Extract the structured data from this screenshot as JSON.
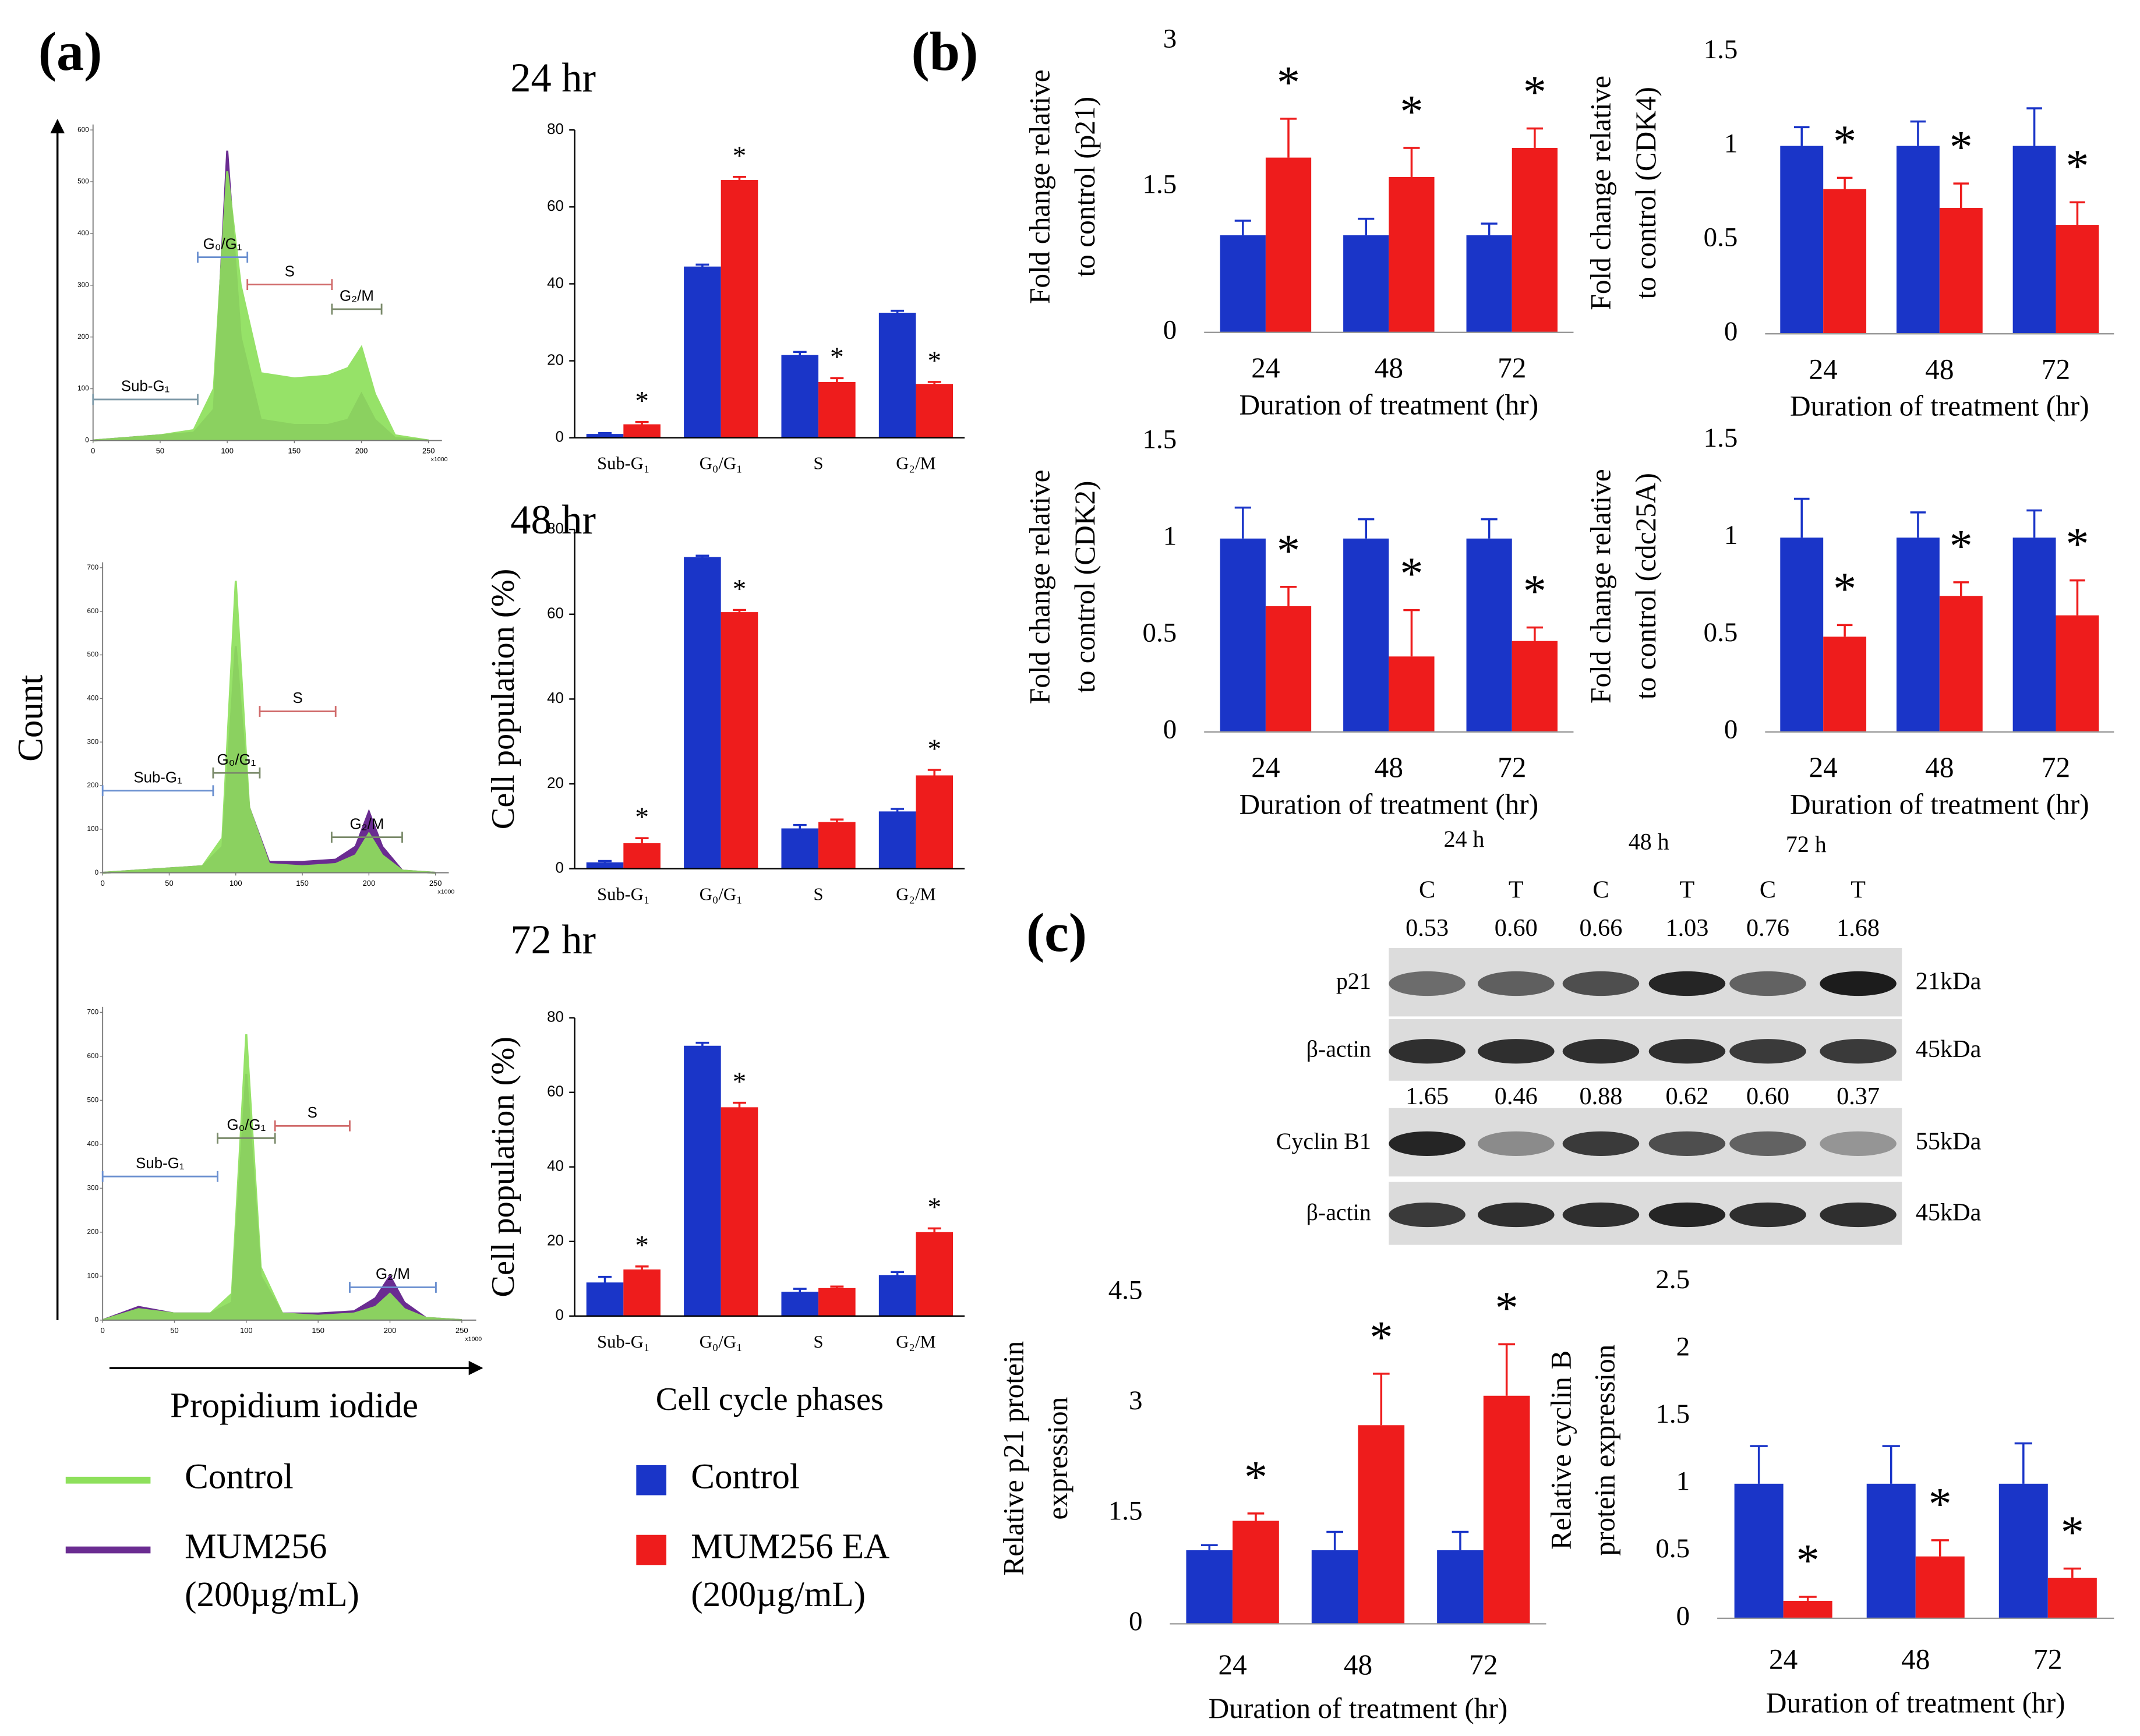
{
  "panels": [
    "(a)",
    "(b)",
    "(c)"
  ],
  "panel_a": {
    "y_label": "Count",
    "x_label": "Propidium iodide",
    "histogram_legend": [
      {
        "name": "Control",
        "color": "#8ee05c"
      },
      {
        "name": "MUM256",
        "note": "(200µg/mL)",
        "color": "#6a2c91"
      }
    ],
    "bar_legend": [
      {
        "name": "Control",
        "color": "#1a35c8"
      },
      {
        "name": "MUM256 EA",
        "note": "(200µg/mL)",
        "color": "#ee1c1c"
      }
    ]
  },
  "blot": {
    "timepoints": [
      "24 h",
      "48 h",
      "72 h"
    ],
    "lanes": [
      "C",
      "T",
      "C",
      "T",
      "C",
      "T"
    ],
    "rows": [
      {
        "label": "p21",
        "size": "21kDa",
        "values": [
          "0.53",
          "0.60",
          "0.66",
          "1.03",
          "0.76",
          "1.68"
        ]
      },
      {
        "label": "β-actin",
        "size": "45kDa"
      },
      {
        "label": "Cyclin B1",
        "size": "55kDa",
        "values": [
          "1.65",
          "0.46",
          "0.88",
          "0.62",
          "0.60",
          "0.37"
        ]
      },
      {
        "label": "β-actin",
        "size": "45kDa"
      }
    ]
  },
  "chart_data": [
    {
      "type": "area",
      "xlim": [
        0,
        260
      ],
      "xticks": [
        0,
        50,
        100,
        150,
        200,
        250
      ],
      "ylim": [
        0,
        600
      ],
      "yticks": [
        0,
        100,
        200,
        300,
        400,
        500,
        600
      ],
      "x_unit_label": "x1000",
      "x": [
        0,
        25,
        50,
        75,
        90,
        100,
        110,
        125,
        150,
        175,
        190,
        200,
        210,
        225,
        250
      ],
      "series": [
        {
          "color": "#6a2c91",
          "values": [
            0,
            5,
            10,
            15,
            60,
            560,
            200,
            40,
            30,
            30,
            40,
            90,
            40,
            5,
            0
          ]
        },
        {
          "color": "#8ee05c",
          "values": [
            0,
            5,
            10,
            20,
            100,
            520,
            300,
            130,
            120,
            125,
            140,
            180,
            90,
            10,
            0
          ]
        }
      ],
      "gates": [
        {
          "label": "Sub-G₁",
          "range": [
            0,
            78
          ],
          "color": "#7f9aa8"
        },
        {
          "label": "G₀/G₁",
          "range": [
            78,
            115
          ],
          "color": "#6a8fcf"
        },
        {
          "label": "S",
          "range": [
            115,
            178
          ],
          "color": "#d06a6a"
        },
        {
          "label": "G₂/M",
          "range": [
            178,
            215
          ],
          "color": "#7a8a6a"
        }
      ]
    },
    {
      "type": "area",
      "xlim": [
        0,
        260
      ],
      "xticks": [
        0,
        50,
        100,
        150,
        200,
        250
      ],
      "ylim": [
        0,
        700
      ],
      "yticks": [
        0,
        100,
        200,
        300,
        400,
        500,
        600,
        700
      ],
      "x_unit_label": "x1000",
      "x": [
        0,
        25,
        50,
        75,
        90,
        100,
        110,
        125,
        150,
        175,
        190,
        200,
        210,
        225,
        250
      ],
      "series": [
        {
          "color": "#6a2c91",
          "values": [
            0,
            5,
            10,
            15,
            60,
            520,
            150,
            25,
            25,
            30,
            60,
            140,
            60,
            5,
            0
          ]
        },
        {
          "color": "#8ee05c",
          "values": [
            0,
            5,
            10,
            15,
            80,
            670,
            150,
            20,
            15,
            20,
            40,
            90,
            40,
            5,
            0
          ]
        }
      ],
      "gates": [
        {
          "label": "Sub-G₁",
          "range": [
            0,
            83
          ],
          "color": "#6a8fcf"
        },
        {
          "label": "G₀/G₁",
          "range": [
            83,
            118
          ],
          "color": "#7a8a6a"
        },
        {
          "label": "S",
          "range": [
            118,
            175
          ],
          "color": "#d06a6a"
        },
        {
          "label": "G₂/M",
          "range": [
            172,
            225
          ],
          "color": "#7a8a6a"
        }
      ]
    },
    {
      "type": "area",
      "xlim": [
        0,
        260
      ],
      "xticks": [
        0,
        50,
        100,
        150,
        200,
        250
      ],
      "ylim": [
        0,
        700
      ],
      "yticks": [
        0,
        100,
        200,
        300,
        400,
        500,
        600,
        700
      ],
      "x_unit_label": "x1000",
      "x": [
        0,
        25,
        50,
        75,
        90,
        100,
        110,
        125,
        150,
        175,
        190,
        200,
        210,
        225,
        250
      ],
      "series": [
        {
          "color": "#6a2c91",
          "values": [
            0,
            30,
            15,
            15,
            40,
            560,
            100,
            15,
            15,
            20,
            50,
            100,
            40,
            5,
            0
          ]
        },
        {
          "color": "#8ee05c",
          "values": [
            0,
            25,
            15,
            15,
            60,
            650,
            120,
            15,
            10,
            15,
            30,
            60,
            25,
            5,
            0
          ]
        }
      ],
      "gates": [
        {
          "label": "Sub-G₁",
          "range": [
            0,
            80
          ],
          "color": "#6a8fcf"
        },
        {
          "label": "G₀/G₁",
          "range": [
            80,
            120
          ],
          "color": "#7a8a6a"
        },
        {
          "label": "S",
          "range": [
            120,
            172
          ],
          "color": "#d06a6a"
        },
        {
          "label": "G₂/M",
          "range": [
            172,
            232
          ],
          "color": "#6a8fcf"
        }
      ]
    },
    {
      "type": "bar",
      "title": "24 hr",
      "categories": [
        "Sub-G₁",
        "G₀/G₁",
        "S",
        "G₂/M"
      ],
      "ylim": [
        0,
        80
      ],
      "yticks": [
        0,
        20,
        40,
        60,
        80
      ],
      "series": [
        {
          "color": "#1a35c8",
          "values": [
            1,
            44.5,
            21.5,
            32.5
          ],
          "errors": [
            0.2,
            0.5,
            0.8,
            0.5
          ],
          "significance": [
            null,
            null,
            null,
            null
          ]
        },
        {
          "color": "#ee1c1c",
          "values": [
            3.5,
            67,
            14.5,
            14
          ],
          "errors": [
            0.6,
            0.8,
            1,
            0.5
          ],
          "significance": [
            "*",
            "*",
            "*",
            "*"
          ]
        }
      ]
    },
    {
      "type": "bar",
      "title": "48 hr",
      "ylabel": [
        "Cell population (%)"
      ],
      "categories": [
        "Sub-G₁",
        "G₀/G₁",
        "S",
        "G₂/M"
      ],
      "ylim": [
        0,
        80
      ],
      "yticks": [
        0,
        20,
        40,
        60,
        80
      ],
      "series": [
        {
          "color": "#1a35c8",
          "values": [
            1.5,
            73.5,
            9.5,
            13.5
          ],
          "errors": [
            0.3,
            0.3,
            0.8,
            0.6
          ],
          "significance": [
            null,
            null,
            null,
            null
          ]
        },
        {
          "color": "#ee1c1c",
          "values": [
            6,
            60.5,
            11,
            22
          ],
          "errors": [
            1.2,
            0.5,
            0.6,
            1.3
          ],
          "significance": [
            "*",
            "*",
            null,
            "*"
          ]
        }
      ]
    },
    {
      "type": "bar",
      "title": "72 hr",
      "ylabel": [
        "Cell population (%)"
      ],
      "xlabel": "Cell cycle phases",
      "categories": [
        "Sub-G₁",
        "G₀/G₁",
        "S",
        "G₂/M"
      ],
      "ylim": [
        0,
        80
      ],
      "yticks": [
        0,
        20,
        40,
        60,
        80
      ],
      "series": [
        {
          "color": "#1a35c8",
          "values": [
            9,
            72.5,
            6.5,
            11
          ],
          "errors": [
            1.5,
            0.8,
            0.8,
            0.8
          ],
          "significance": [
            null,
            null,
            null,
            null
          ]
        },
        {
          "color": "#ee1c1c",
          "values": [
            12.5,
            56,
            7.5,
            22.5
          ],
          "errors": [
            0.8,
            1.2,
            0.4,
            1
          ],
          "significance": [
            "*",
            "*",
            null,
            "*"
          ]
        }
      ]
    },
    {
      "type": "bar",
      "ylabel": [
        "Fold change relative",
        "to control (p21)"
      ],
      "xlabel": "Duration of treatment (hr)",
      "categories": [
        "24",
        "48",
        "72"
      ],
      "ylim": [
        0,
        3
      ],
      "yticks": [
        0,
        1.5,
        3
      ],
      "series": [
        {
          "color": "#1a35c8",
          "values": [
            1,
            1,
            1
          ],
          "errors": [
            0.15,
            0.17,
            0.12
          ],
          "significance": [
            null,
            null,
            null
          ]
        },
        {
          "color": "#ee1c1c",
          "values": [
            1.8,
            1.6,
            1.9
          ],
          "errors": [
            0.4,
            0.3,
            0.2
          ],
          "significance": [
            "*",
            "*",
            "*"
          ]
        }
      ]
    },
    {
      "type": "bar",
      "ylabel": [
        "Fold change relative",
        "to control (CDK4)"
      ],
      "xlabel": "Duration of treatment (hr)",
      "categories": [
        "24",
        "48",
        "72"
      ],
      "ylim": [
        0,
        1.5
      ],
      "yticks": [
        0,
        0.5,
        1,
        1.5
      ],
      "series": [
        {
          "color": "#1a35c8",
          "values": [
            1,
            1,
            1
          ],
          "errors": [
            0.1,
            0.13,
            0.2
          ],
          "significance": [
            null,
            null,
            null
          ]
        },
        {
          "color": "#ee1c1c",
          "values": [
            0.77,
            0.67,
            0.58
          ],
          "errors": [
            0.06,
            0.13,
            0.12
          ],
          "significance": [
            "*",
            "*",
            "*"
          ]
        }
      ]
    },
    {
      "type": "bar",
      "ylabel": [
        "Fold change relative",
        "to control (CDK2)"
      ],
      "xlabel": "Duration of treatment (hr)",
      "categories": [
        "24",
        "48",
        "72"
      ],
      "ylim": [
        0,
        1.5
      ],
      "yticks": [
        0,
        0.5,
        1,
        1.5
      ],
      "series": [
        {
          "color": "#1a35c8",
          "values": [
            1,
            1,
            1
          ],
          "errors": [
            0.16,
            0.1,
            0.1
          ],
          "significance": [
            null,
            null,
            null
          ]
        },
        {
          "color": "#ee1c1c",
          "values": [
            0.65,
            0.39,
            0.47
          ],
          "errors": [
            0.1,
            0.24,
            0.07
          ],
          "significance": [
            "*",
            "*",
            "*"
          ]
        }
      ]
    },
    {
      "type": "bar",
      "ylabel": [
        "Fold change relative",
        "to control (cdc25A)"
      ],
      "xlabel": "Duration of treatment (hr)",
      "categories": [
        "24",
        "48",
        "72"
      ],
      "ylim": [
        0,
        1.5
      ],
      "yticks": [
        0,
        0.5,
        1,
        1.5
      ],
      "series": [
        {
          "color": "#1a35c8",
          "values": [
            1,
            1,
            1
          ],
          "errors": [
            0.2,
            0.13,
            0.14
          ],
          "significance": [
            null,
            null,
            null
          ]
        },
        {
          "color": "#ee1c1c",
          "values": [
            0.49,
            0.7,
            0.6
          ],
          "errors": [
            0.06,
            0.07,
            0.18
          ],
          "significance": [
            "*",
            "*",
            "*"
          ]
        }
      ]
    },
    {
      "type": "bar",
      "ylabel": [
        "Relative p21 protein",
        "expression"
      ],
      "xlabel": "Duration  of treatment  (hr)",
      "categories": [
        "24",
        "48",
        "72"
      ],
      "ylim": [
        0,
        4.5
      ],
      "yticks": [
        0,
        1.5,
        3,
        4.5
      ],
      "series": [
        {
          "color": "#1a35c8",
          "values": [
            1,
            1,
            1
          ],
          "errors": [
            0.07,
            0.25,
            0.25
          ],
          "significance": [
            null,
            null,
            null
          ]
        },
        {
          "color": "#ee1c1c",
          "values": [
            1.4,
            2.7,
            3.1
          ],
          "errors": [
            0.1,
            0.7,
            0.7
          ],
          "significance": [
            "*",
            "*",
            "*"
          ]
        }
      ]
    },
    {
      "type": "bar",
      "ylabel": [
        "Relative cyclin B",
        "protein expression"
      ],
      "xlabel": "Duration  of treatment  (hr)",
      "categories": [
        "24",
        "48",
        "72"
      ],
      "ylim": [
        0,
        2.5
      ],
      "yticks": [
        0,
        0.5,
        1,
        1.5,
        2,
        2.5
      ],
      "series": [
        {
          "color": "#1a35c8",
          "values": [
            1,
            1,
            1
          ],
          "errors": [
            0.28,
            0.28,
            0.3
          ],
          "significance": [
            null,
            null,
            null
          ]
        },
        {
          "color": "#ee1c1c",
          "values": [
            0.13,
            0.46,
            0.3
          ],
          "errors": [
            0.03,
            0.12,
            0.07
          ],
          "significance": [
            "*",
            "*",
            "*"
          ]
        }
      ]
    }
  ]
}
